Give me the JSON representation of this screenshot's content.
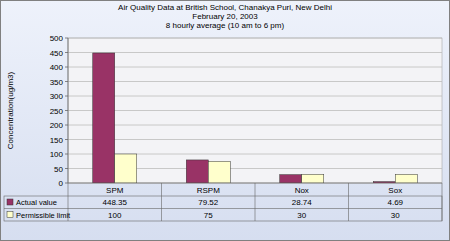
{
  "chart_data": {
    "type": "bar",
    "title": "Air Quality Data at British School, Chanakya Puri, New Delhi",
    "subtitle": [
      "February 20, 2003",
      "8 hourly average (10 am to 6 pm)"
    ],
    "y_label": "Concentration(ug/m3)",
    "categories": [
      "SPM",
      "RSPM",
      "Nox",
      "Sox"
    ],
    "series": [
      {
        "name": "Actual value",
        "color": "#993366",
        "values": [
          448.35,
          79.52,
          28.74,
          4.69
        ]
      },
      {
        "name": "Permissible limit",
        "color": "#ffffcc",
        "values": [
          100,
          75,
          30,
          30
        ]
      }
    ],
    "ylim": [
      0,
      500
    ],
    "yticks": [
      0,
      50,
      100,
      150,
      200,
      250,
      300,
      350,
      400,
      450,
      500
    ],
    "grid": true,
    "legend": "bottom"
  }
}
